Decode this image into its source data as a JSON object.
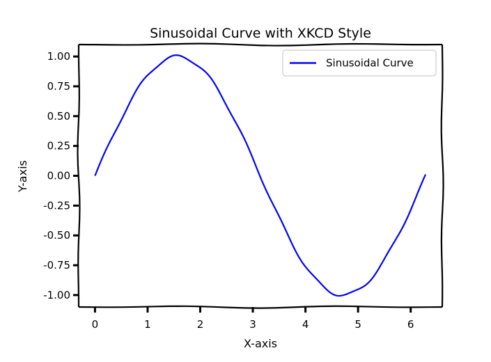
{
  "chart_data": {
    "type": "line",
    "title": "Sinusoidal Curve with XKCD Style",
    "xlabel": "X-axis",
    "ylabel": "Y-axis",
    "xlim": [
      -0.31,
      6.6
    ],
    "ylim": [
      -1.1,
      1.1
    ],
    "x_ticks": [
      0,
      1,
      2,
      3,
      4,
      5,
      6
    ],
    "x_tick_labels": [
      "0",
      "1",
      "2",
      "3",
      "4",
      "5",
      "6"
    ],
    "y_ticks": [
      1.0,
      0.75,
      0.5,
      0.25,
      0.0,
      -0.25,
      -0.5,
      -0.75,
      -1.0
    ],
    "y_tick_labels": [
      "1.00",
      "0.75",
      "0.50",
      "0.25",
      "0.00",
      "-0.25",
      "-0.50",
      "-0.75",
      "-1.00"
    ],
    "grid": false,
    "legend_position": "top-right",
    "series": [
      {
        "name": "Sinusoidal Curve",
        "color": "#0000ff",
        "function": "sin(x)",
        "x": [
          0,
          0.2618,
          0.5236,
          0.7854,
          1.0472,
          1.309,
          1.5708,
          1.8326,
          2.0944,
          2.3562,
          2.618,
          2.8798,
          3.1416,
          3.4034,
          3.6652,
          3.927,
          4.1888,
          4.4506,
          4.7124,
          4.9742,
          5.236,
          5.4978,
          5.7596,
          6.0214,
          6.2832
        ],
        "y": [
          0.0,
          0.259,
          0.5,
          0.707,
          0.866,
          0.966,
          1.0,
          0.966,
          0.866,
          0.707,
          0.5,
          0.259,
          0.0,
          -0.259,
          -0.5,
          -0.707,
          -0.866,
          -0.966,
          -1.0,
          -0.966,
          -0.866,
          -0.707,
          -0.5,
          -0.259,
          0.0
        ]
      }
    ]
  }
}
